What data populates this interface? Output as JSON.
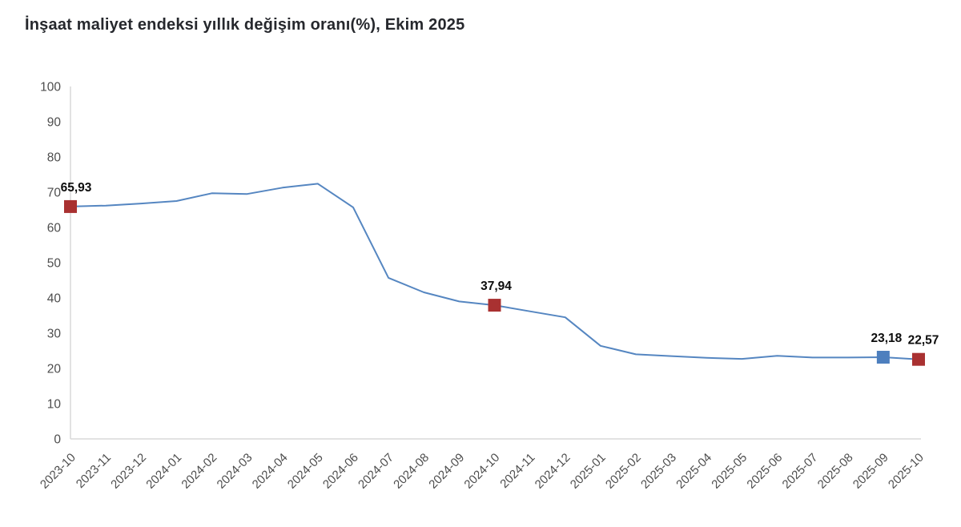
{
  "chart_data": {
    "type": "line",
    "title": "İnşaat maliyet endeksi yıllık değişim oranı(%), Ekim 2025",
    "categories": [
      "2023-10",
      "2023-11",
      "2023-12",
      "2024-01",
      "2024-02",
      "2024-03",
      "2024-04",
      "2024-05",
      "2024-06",
      "2024-07",
      "2024-08",
      "2024-09",
      "2024-10",
      "2024-11",
      "2024-12",
      "2025-01",
      "2025-02",
      "2025-03",
      "2025-04",
      "2025-05",
      "2025-06",
      "2025-07",
      "2025-08",
      "2025-09",
      "2025-10"
    ],
    "values": [
      65.93,
      66.2,
      66.8,
      67.5,
      69.7,
      69.5,
      71.3,
      72.4,
      65.7,
      45.7,
      41.6,
      39.0,
      37.94,
      36.2,
      34.5,
      26.4,
      24.0,
      23.5,
      23.0,
      22.7,
      23.6,
      23.1,
      23.1,
      23.18,
      22.57
    ],
    "ylim": [
      0,
      100
    ],
    "ytick_step": 10,
    "yticks": [
      "0",
      "10",
      "20",
      "30",
      "40",
      "50",
      "60",
      "70",
      "80",
      "90",
      "100"
    ],
    "grid": false,
    "legend": "none",
    "line_color": "#5586c1",
    "axis_color": "#d9d9d9",
    "tick_text_color": "#4d4d4d",
    "data_label_color": "#0d0d0d",
    "markers": [
      {
        "category": "2023-10",
        "value": 65.93,
        "label": "65,93",
        "color": "#a93131",
        "dx": 7
      },
      {
        "category": "2024-10",
        "value": 37.94,
        "label": "37,94",
        "color": "#a93131",
        "dx": 2
      },
      {
        "category": "2025-09",
        "value": 23.18,
        "label": "23,18",
        "color": "#4d7fbe",
        "dx": 4
      },
      {
        "category": "2025-10",
        "value": 22.57,
        "label": "22,57",
        "color": "#a93131",
        "dx": 6
      }
    ]
  }
}
